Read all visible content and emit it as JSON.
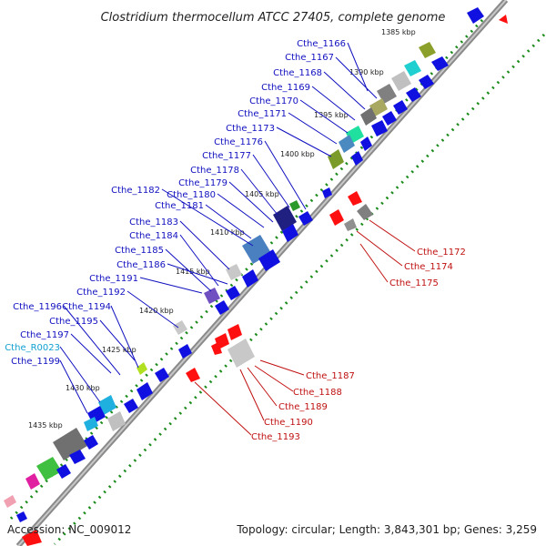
{
  "title": "Clostridium thermocellum ATCC 27405, complete genome",
  "footer": {
    "accession": "Accession: NC_009012",
    "summary": "Topology: circular; Length: 3,843,301 bp; Genes: 3,259"
  },
  "colors": {
    "backbone": "#909090",
    "forward_cds": "#1010e0",
    "reverse_cds": "#ff1010",
    "label_forward": "#1010c0",
    "label_reverse": "#c01010",
    "label_rna": "#10a0d0",
    "dotted_ring": "#1a8a1a"
  },
  "kbp_ticks": [
    "1385 kbp",
    "1390 kbp",
    "1395 kbp",
    "1400 kbp",
    "1405 kbp",
    "1410 kbp",
    "1415 kbp",
    "1420 kbp",
    "1425 kbp",
    "1430 kbp",
    "1435 kbp"
  ],
  "forward_labels": [
    "Cthe_1166",
    "Cthe_1167",
    "Cthe_1168",
    "Cthe_1169",
    "Cthe_1170",
    "Cthe_1171",
    "Cthe_1173",
    "Cthe_1176",
    "Cthe_1177",
    "Cthe_1178",
    "Cthe_1179",
    "Cthe_1182",
    "Cthe_1180",
    "Cthe_1181",
    "Cthe_1183",
    "Cthe_1184",
    "Cthe_1185",
    "Cthe_1186",
    "Cthe_1191",
    "Cthe_1192",
    "Cthe_1196",
    "Cthe_1194",
    "Cthe_1195",
    "Cthe_R0023",
    "Cthe_1197",
    "Cthe_1199"
  ],
  "reverse_labels": [
    "Cthe_1172",
    "Cthe_1174",
    "Cthe_1175",
    "Cthe_1187",
    "Cthe_1188",
    "Cthe_1189",
    "Cthe_1190",
    "Cthe_1193"
  ]
}
